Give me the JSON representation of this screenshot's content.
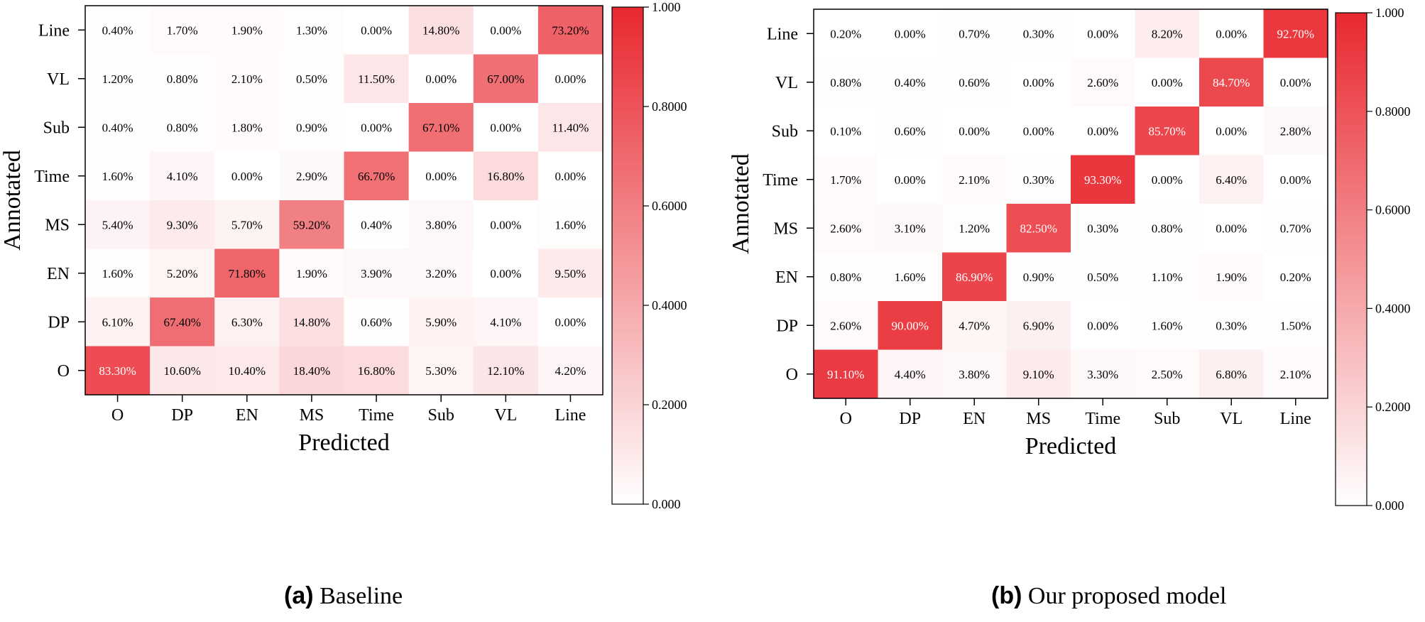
{
  "colors": {
    "high": "#e8282f",
    "low": "#ffffff"
  },
  "chart_data": [
    {
      "type": "heatmap",
      "title": "Baseline",
      "caption_tag": "(a)",
      "xlabel": "Predicted",
      "ylabel": "Annotated",
      "x_categories": [
        "O",
        "DP",
        "EN",
        "MS",
        "Time",
        "Sub",
        "VL",
        "Line"
      ],
      "y_categories_top_to_bottom": [
        "Line",
        "VL",
        "Sub",
        "Time",
        "MS",
        "EN",
        "DP",
        "O"
      ],
      "cell_labels": [
        [
          "0.40%",
          "1.70%",
          "1.90%",
          "1.30%",
          "0.00%",
          "14.80%",
          "0.00%",
          "73.20%"
        ],
        [
          "1.20%",
          "0.80%",
          "2.10%",
          "0.50%",
          "11.50%",
          "0.00%",
          "67.00%",
          "0.00%"
        ],
        [
          "0.40%",
          "0.80%",
          "1.80%",
          "0.90%",
          "0.00%",
          "67.10%",
          "0.00%",
          "11.40%"
        ],
        [
          "1.60%",
          "4.10%",
          "0.00%",
          "2.90%",
          "66.70%",
          "0.00%",
          "16.80%",
          "0.00%"
        ],
        [
          "5.40%",
          "9.30%",
          "5.70%",
          "59.20%",
          "0.40%",
          "3.80%",
          "0.00%",
          "1.60%"
        ],
        [
          "1.60%",
          "5.20%",
          "71.80%",
          "1.90%",
          "3.90%",
          "3.20%",
          "0.00%",
          "9.50%"
        ],
        [
          "6.10%",
          "67.40%",
          "6.30%",
          "14.80%",
          "0.60%",
          "5.90%",
          "4.10%",
          "0.00%"
        ],
        [
          "83.30%",
          "10.60%",
          "10.40%",
          "18.40%",
          "16.80%",
          "5.30%",
          "12.10%",
          "4.20%"
        ]
      ],
      "colorbar_ticks": [
        "1.000",
        "0.8000",
        "0.6000",
        "0.4000",
        "0.2000",
        "0.000"
      ],
      "colorbar_range": [
        0,
        1
      ]
    },
    {
      "type": "heatmap",
      "title": "Our proposed model",
      "caption_tag": "(b)",
      "xlabel": "Predicted",
      "ylabel": "Annotated",
      "x_categories": [
        "O",
        "DP",
        "EN",
        "MS",
        "Time",
        "Sub",
        "VL",
        "Line"
      ],
      "y_categories_top_to_bottom": [
        "Line",
        "VL",
        "Sub",
        "Time",
        "MS",
        "EN",
        "DP",
        "O"
      ],
      "cell_labels": [
        [
          "0.20%",
          "0.00%",
          "0.70%",
          "0.30%",
          "0.00%",
          "8.20%",
          "0.00%",
          "92.70%"
        ],
        [
          "0.80%",
          "0.40%",
          "0.60%",
          "0.00%",
          "2.60%",
          "0.00%",
          "84.70%",
          "0.00%"
        ],
        [
          "0.10%",
          "0.60%",
          "0.00%",
          "0.00%",
          "0.00%",
          "85.70%",
          "0.00%",
          "2.80%"
        ],
        [
          "1.70%",
          "0.00%",
          "2.10%",
          "0.30%",
          "93.30%",
          "0.00%",
          "6.40%",
          "0.00%"
        ],
        [
          "2.60%",
          "3.10%",
          "1.20%",
          "82.50%",
          "0.30%",
          "0.80%",
          "0.00%",
          "0.70%"
        ],
        [
          "0.80%",
          "1.60%",
          "86.90%",
          "0.90%",
          "0.50%",
          "1.10%",
          "1.90%",
          "0.20%"
        ],
        [
          "2.60%",
          "90.00%",
          "4.70%",
          "6.90%",
          "0.00%",
          "1.60%",
          "0.30%",
          "1.50%"
        ],
        [
          "91.10%",
          "4.40%",
          "3.80%",
          "9.10%",
          "3.30%",
          "2.50%",
          "6.80%",
          "2.10%"
        ]
      ],
      "colorbar_ticks": [
        "1.000",
        "0.8000",
        "0.6000",
        "0.4000",
        "0.2000",
        "0.000"
      ],
      "colorbar_range": [
        0,
        1
      ]
    }
  ]
}
